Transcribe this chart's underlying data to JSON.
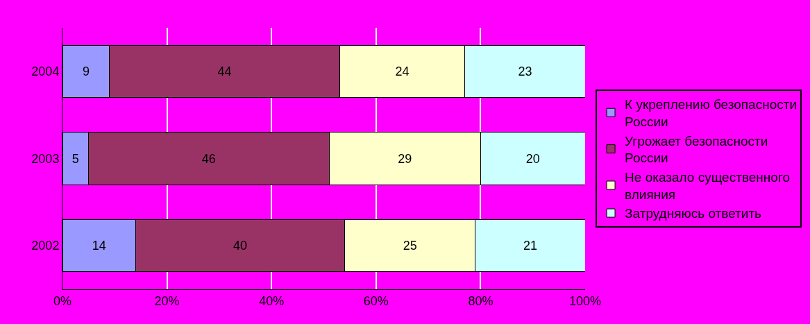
{
  "chart_data": {
    "type": "bar",
    "orientation": "horizontal",
    "stacked": true,
    "categories": [
      "2004",
      "2003",
      "2002"
    ],
    "series": [
      {
        "name": "К укреплению безопасности России",
        "color": "#9999ff",
        "values": [
          9,
          5,
          14
        ]
      },
      {
        "name": "Угрожает безопасности России",
        "color": "#993366",
        "values": [
          44,
          46,
          40
        ]
      },
      {
        "name": "Не оказало существенного влияния",
        "color": "#ffffcc",
        "values": [
          24,
          29,
          25
        ]
      },
      {
        "name": "Затрудняюсь ответить",
        "color": "#ccffff",
        "values": [
          23,
          20,
          21
        ]
      }
    ],
    "xlim": [
      0,
      100
    ],
    "xticks": [
      {
        "value": 0,
        "label": "0%"
      },
      {
        "value": 20,
        "label": "20%"
      },
      {
        "value": 40,
        "label": "40%"
      },
      {
        "value": 60,
        "label": "60%"
      },
      {
        "value": 80,
        "label": "80%"
      },
      {
        "value": 100,
        "label": "100%"
      }
    ],
    "grid": "x",
    "legend": "right",
    "data_labels": true
  }
}
